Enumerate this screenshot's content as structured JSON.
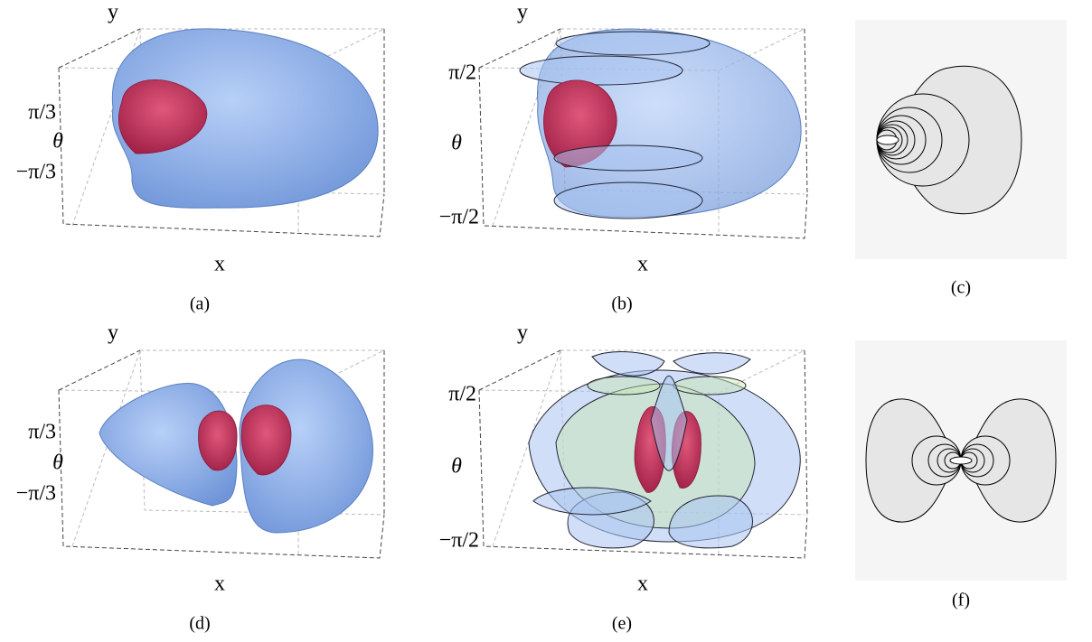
{
  "panels": [
    {
      "caption": "(a)",
      "y_label": "y",
      "x_label": "x",
      "theta_label": "θ",
      "ticks": [
        "π/3",
        "−π/3"
      ]
    },
    {
      "caption": "(b)",
      "y_label": "y",
      "x_label": "x",
      "theta_label": "θ",
      "ticks": [
        "π/2",
        "−π/2"
      ]
    },
    {
      "caption": "(c)"
    },
    {
      "caption": "(d)",
      "y_label": "y",
      "x_label": "x",
      "theta_label": "θ",
      "ticks": [
        "π/3",
        "−π/3"
      ]
    },
    {
      "caption": "(e)",
      "y_label": "y",
      "x_label": "x",
      "theta_label": "θ",
      "ticks": [
        "π/2",
        "−π/2"
      ]
    },
    {
      "caption": "(f)"
    }
  ]
}
